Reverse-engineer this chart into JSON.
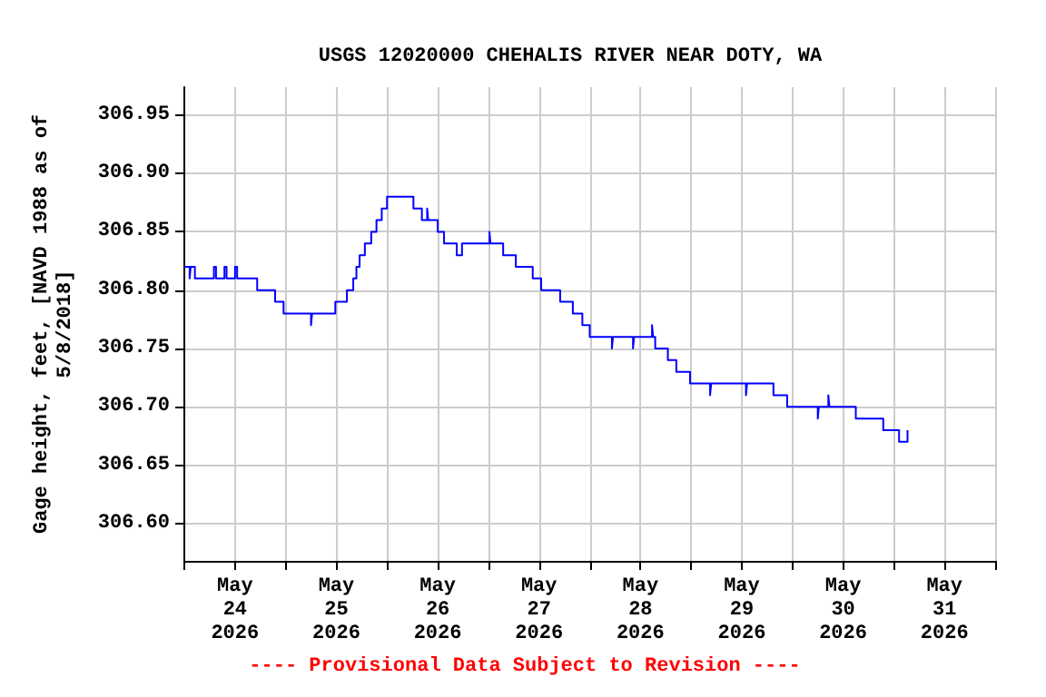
{
  "chart_data": {
    "type": "step",
    "title": "USGS 12020000 CHEHALIS RIVER NEAR DOTY, WA",
    "ylabel": "Gage height, feet, [NAVD 1988 as of\n5/8/2018]",
    "annotations": [
      "---- Provisional Data Subject to Revision ----"
    ],
    "grid": true,
    "xlim": [
      "2026-05-24T00:00",
      "2026-06-01T00:00"
    ],
    "xticks": [
      {
        "value": "2026-05-24T00:00",
        "label": null
      },
      {
        "value": "2026-05-24T12:00",
        "label": "May\n24\n2026"
      },
      {
        "value": "2026-05-25T00:00",
        "label": null
      },
      {
        "value": "2026-05-25T12:00",
        "label": "May\n25\n2026"
      },
      {
        "value": "2026-05-26T00:00",
        "label": null
      },
      {
        "value": "2026-05-26T12:00",
        "label": "May\n26\n2026"
      },
      {
        "value": "2026-05-27T00:00",
        "label": null
      },
      {
        "value": "2026-05-27T12:00",
        "label": "May\n27\n2026"
      },
      {
        "value": "2026-05-28T00:00",
        "label": null
      },
      {
        "value": "2026-05-28T12:00",
        "label": "May\n28\n2026"
      },
      {
        "value": "2026-05-29T00:00",
        "label": null
      },
      {
        "value": "2026-05-29T12:00",
        "label": "May\n29\n2026"
      },
      {
        "value": "2026-05-30T00:00",
        "label": null
      },
      {
        "value": "2026-05-30T12:00",
        "label": "May\n30\n2026"
      },
      {
        "value": "2026-05-31T00:00",
        "label": null
      },
      {
        "value": "2026-05-31T12:00",
        "label": "May\n31\n2026"
      },
      {
        "value": "2026-06-01T00:00",
        "label": null
      }
    ],
    "ylim": [
      306.568,
      306.974
    ],
    "yticks": [
      {
        "value": 306.6,
        "label": "306.60"
      },
      {
        "value": 306.65,
        "label": "306.65"
      },
      {
        "value": 306.7,
        "label": "306.70"
      },
      {
        "value": 306.75,
        "label": "306.75"
      },
      {
        "value": 306.8,
        "label": "306.80"
      },
      {
        "value": 306.85,
        "label": "306.85"
      },
      {
        "value": 306.9,
        "label": "306.90"
      },
      {
        "value": 306.95,
        "label": "306.95"
      }
    ],
    "series": [
      {
        "color": "#0000ff",
        "x": [
          "2026-05-24T00:00",
          "2026-05-24T01:15",
          "2026-05-24T01:30",
          "2026-05-24T02:30",
          "2026-05-24T07:00",
          "2026-05-24T07:30",
          "2026-05-24T09:30",
          "2026-05-24T10:00",
          "2026-05-24T12:00",
          "2026-05-24T12:30",
          "2026-05-24T17:15",
          "2026-05-24T21:30",
          "2026-05-24T23:30",
          "2026-05-25T06:00",
          "2026-05-25T06:15",
          "2026-05-25T11:45",
          "2026-05-25T14:30",
          "2026-05-25T16:00",
          "2026-05-25T16:45",
          "2026-05-25T17:30",
          "2026-05-25T18:45",
          "2026-05-25T20:15",
          "2026-05-25T21:30",
          "2026-05-25T22:45",
          "2026-05-26T00:00",
          "2026-05-26T06:15",
          "2026-05-26T08:15",
          "2026-05-26T09:30",
          "2026-05-26T09:45",
          "2026-05-26T12:00",
          "2026-05-26T13:30",
          "2026-05-26T16:30",
          "2026-05-26T17:45",
          "2026-05-27T00:15",
          "2026-05-27T00:30",
          "2026-05-27T03:30",
          "2026-05-27T06:30",
          "2026-05-27T10:30",
          "2026-05-27T12:30",
          "2026-05-27T17:00",
          "2026-05-27T20:00",
          "2026-05-27T22:15",
          "2026-05-28T00:00",
          "2026-05-28T05:15",
          "2026-05-28T05:30",
          "2026-05-28T10:15",
          "2026-05-28T10:30",
          "2026-05-28T14:45",
          "2026-05-28T15:00",
          "2026-05-28T15:30",
          "2026-05-28T18:30",
          "2026-05-28T20:30",
          "2026-05-28T23:45",
          "2026-05-29T04:30",
          "2026-05-29T04:45",
          "2026-05-29T13:00",
          "2026-05-29T13:15",
          "2026-05-29T19:30",
          "2026-05-29T22:45",
          "2026-05-30T06:00",
          "2026-05-30T06:15",
          "2026-05-30T08:30",
          "2026-05-30T08:45",
          "2026-05-30T15:00",
          "2026-05-30T21:30",
          "2026-05-31T01:15",
          "2026-05-31T03:15",
          "2026-05-31T03:30"
        ],
        "values": [
          306.82,
          306.81,
          306.82,
          306.81,
          306.82,
          306.81,
          306.82,
          306.81,
          306.82,
          306.81,
          306.8,
          306.79,
          306.78,
          306.77,
          306.78,
          306.79,
          306.8,
          306.81,
          306.82,
          306.83,
          306.84,
          306.85,
          306.86,
          306.87,
          306.88,
          306.87,
          306.86,
          306.87,
          306.86,
          306.85,
          306.84,
          306.83,
          306.84,
          306.85,
          306.84,
          306.83,
          306.82,
          306.81,
          306.8,
          306.79,
          306.78,
          306.77,
          306.76,
          306.75,
          306.76,
          306.75,
          306.76,
          306.77,
          306.76,
          306.75,
          306.74,
          306.73,
          306.72,
          306.71,
          306.72,
          306.71,
          306.72,
          306.71,
          306.7,
          306.69,
          306.7,
          306.71,
          306.7,
          306.69,
          306.68,
          306.67,
          306.68,
          306.68
        ]
      }
    ]
  }
}
